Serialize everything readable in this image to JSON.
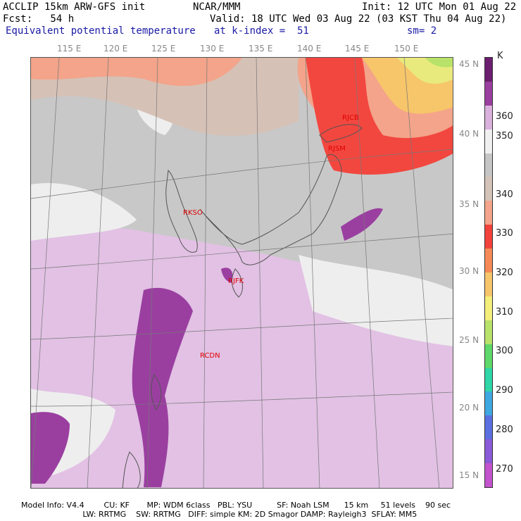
{
  "header": {
    "line1_left": "ACCLIP 15km ARW-GFS init",
    "line1_mid": "NCAR/MMM",
    "line1_right": "Init: 12 UTC Mon 01 Aug 22",
    "line2_left": "Fcst:   54 h",
    "line2_right": "Valid: 18 UTC Wed 03 Aug 22 (03 KST Thu 04 Aug 22)",
    "line3_left": "Equivalent potential temperature",
    "line3_mid": "at k-index =  51",
    "line3_right": "sm= 2"
  },
  "map": {
    "lon_labels": [
      "115 E",
      "120 E",
      "125 E",
      "130 E",
      "135 E",
      "140 E",
      "145 E",
      "150 E"
    ],
    "lat_labels": [
      "45 N",
      "40 N",
      "35 N",
      "30 N",
      "25 N",
      "20 N",
      "15 N"
    ],
    "stations": [
      "RJCB",
      "RJSM",
      "RKSO",
      "RJFK",
      "RCDN"
    ]
  },
  "colorbar": {
    "unit": "K",
    "labels": [
      "360",
      "350",
      "340",
      "330",
      "320",
      "310",
      "300",
      "290",
      "280",
      "270"
    ],
    "colors": [
      "#6b1f6e",
      "#9a3fa0",
      "#d9b1dc",
      "#f0f0f0",
      "#c6c6c6",
      "#d4c3b8",
      "#f3a48a",
      "#f2423a",
      "#f58a57",
      "#f7c56a",
      "#f4ee7a",
      "#b8e26a",
      "#5ed86a",
      "#2fd6a8",
      "#3fa8e0",
      "#5a6fe0",
      "#8a5ad8",
      "#c253cc"
    ]
  },
  "footer": {
    "line1": "Model Info: V4.4        CU: KF       MP: WDM 6class   PBL: YSU          SF: Noah LSM      15 km     51 levels    90 sec",
    "line2": "                         LW: RRTMG    SW: RRTMG   DIFF: simple KM: 2D Smagor DAMP: Rayleigh3  SFLAY: MM5"
  }
}
